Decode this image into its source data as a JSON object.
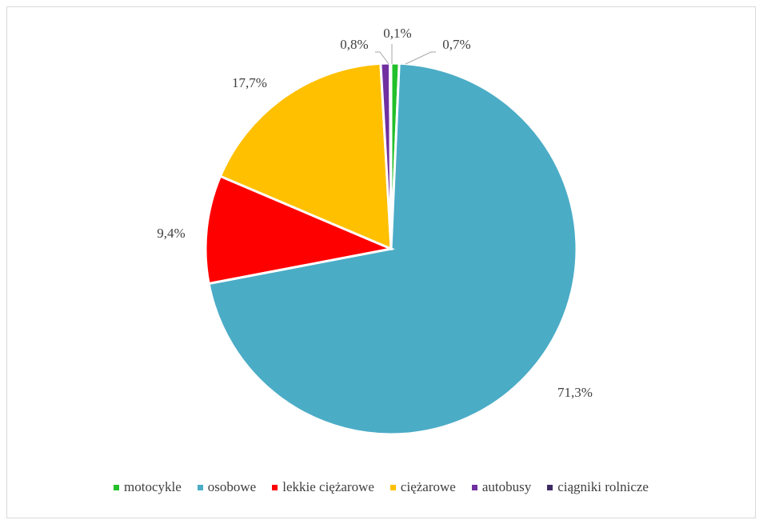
{
  "chart_data": {
    "type": "pie",
    "slices": [
      {
        "name": "motocykle",
        "value": 0.7,
        "label": "0,7%",
        "color": "#22c02a"
      },
      {
        "name": "osobowe",
        "value": 71.3,
        "label": "71,3%",
        "color": "#4bacc6"
      },
      {
        "name": "lekkie ciężarowe",
        "value": 9.4,
        "label": "9,4%",
        "color": "#ff0000"
      },
      {
        "name": "ciężarowe",
        "value": 17.7,
        "label": "17,7%",
        "color": "#ffc000"
      },
      {
        "name": "autobusy",
        "value": 0.8,
        "label": "0,8%",
        "color": "#7030a0"
      },
      {
        "name": "ciągniki rolnicze",
        "value": 0.1,
        "label": "0,1%",
        "color": "#3f2b64"
      }
    ],
    "start_angle_deg": 0,
    "direction": "clockwise",
    "legend_position": "bottom"
  }
}
